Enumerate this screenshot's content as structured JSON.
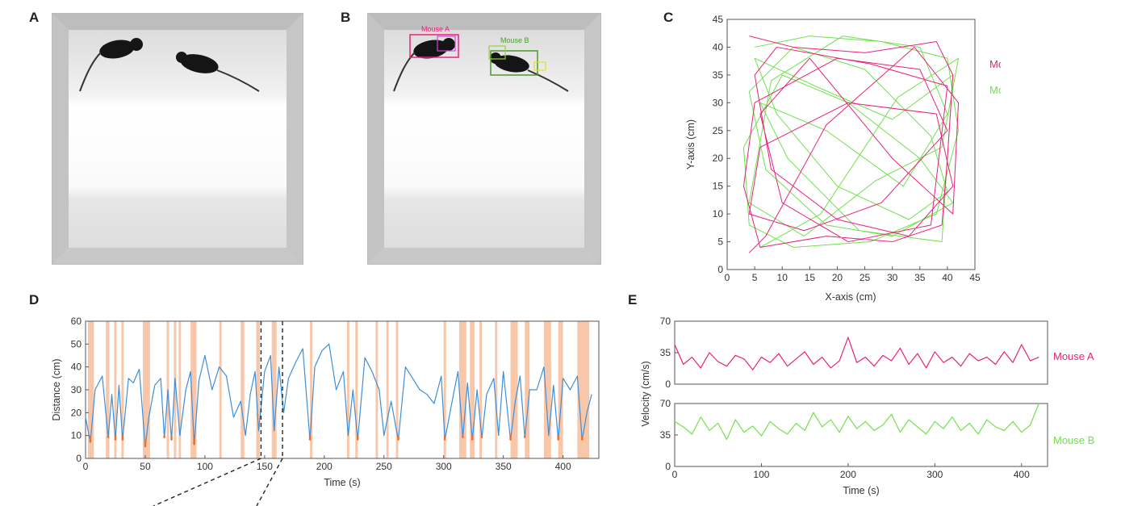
{
  "panels": {
    "a": "A",
    "b": "B",
    "c": "C",
    "d": "D",
    "e": "E"
  },
  "photo_b": {
    "label_a": "Mouse A",
    "label_b": "Mouse B"
  },
  "colors": {
    "mouse_a": "#e8227a",
    "mouse_b": "#6fe24a",
    "distance": "#3d8fd9",
    "close": "#f06a2a",
    "band": "#f6b48e"
  },
  "chart_data": [
    {
      "id": "C",
      "type": "line",
      "xlabel": "X-axis (cm)",
      "ylabel": "Y-axis (cm)",
      "xlim": [
        0,
        45
      ],
      "ylim": [
        0,
        45
      ],
      "xticks": [
        0,
        5,
        10,
        15,
        20,
        25,
        30,
        35,
        40,
        45
      ],
      "yticks": [
        0,
        5,
        10,
        15,
        20,
        25,
        30,
        35,
        40,
        45
      ],
      "grid": false,
      "legend": "right",
      "series": [
        {
          "name": "Mouse A",
          "color": "#e8227a",
          "x": [
            4,
            12,
            25,
            38,
            41,
            40,
            39,
            30,
            18,
            6,
            3,
            5,
            20,
            35,
            40,
            28,
            14,
            4,
            6,
            22,
            38,
            41,
            33,
            20,
            8,
            5,
            9,
            26,
            40,
            37,
            22,
            10,
            6,
            15,
            30,
            41,
            42,
            34,
            18,
            7,
            4
          ],
          "y": [
            42,
            40,
            39,
            41,
            35,
            20,
            8,
            5,
            6,
            4,
            15,
            30,
            38,
            36,
            25,
            12,
            7,
            10,
            22,
            30,
            28,
            15,
            6,
            9,
            18,
            35,
            40,
            37,
            33,
            8,
            5,
            12,
            28,
            38,
            20,
            10,
            30,
            40,
            26,
            6,
            3
          ]
        },
        {
          "name": "Mouse B",
          "color": "#6fe24a",
          "x": [
            5,
            15,
            28,
            40,
            42,
            38,
            26,
            12,
            4,
            3,
            10,
            22,
            35,
            41,
            30,
            18,
            7,
            4,
            12,
            25,
            37,
            40,
            33,
            20,
            9,
            5,
            16,
            30,
            41,
            39,
            24,
            11,
            6,
            18,
            32,
            40,
            35,
            21,
            8,
            4,
            14,
            27,
            39,
            42,
            31,
            17,
            6
          ],
          "y": [
            40,
            42,
            41,
            38,
            25,
            10,
            5,
            4,
            8,
            22,
            35,
            30,
            20,
            12,
            6,
            8,
            18,
            32,
            40,
            36,
            24,
            14,
            9,
            15,
            28,
            38,
            33,
            27,
            35,
            5,
            7,
            20,
            30,
            25,
            15,
            28,
            40,
            42,
            34,
            12,
            6,
            16,
            22,
            38,
            31,
            10,
            4
          ]
        }
      ]
    },
    {
      "id": "D",
      "type": "line",
      "xlabel": "Time (s)",
      "ylabel": "Distance (cm)",
      "xlim": [
        0,
        430
      ],
      "ylim": [
        0,
        60
      ],
      "xticks": [
        0,
        50,
        100,
        150,
        200,
        250,
        300,
        350,
        400
      ],
      "yticks": [
        0,
        10,
        20,
        30,
        40,
        50,
        60
      ],
      "close_threshold": 10,
      "zoom_window": [
        147,
        165
      ],
      "close_intervals": [
        [
          2,
          7
        ],
        [
          17,
          20
        ],
        [
          24,
          26
        ],
        [
          30,
          32
        ],
        [
          48,
          54
        ],
        [
          68,
          70
        ],
        [
          74,
          76
        ],
        [
          78,
          80
        ],
        [
          88,
          93
        ],
        [
          112,
          114
        ],
        [
          130,
          133
        ],
        [
          143,
          146
        ],
        [
          156,
          160
        ],
        [
          188,
          190
        ],
        [
          219,
          221
        ],
        [
          226,
          228
        ],
        [
          243,
          245
        ],
        [
          252,
          254
        ],
        [
          260,
          262
        ],
        [
          300,
          302
        ],
        [
          313,
          319
        ],
        [
          322,
          326
        ],
        [
          330,
          332
        ],
        [
          343,
          345
        ],
        [
          356,
          362
        ],
        [
          368,
          372
        ],
        [
          384,
          390
        ],
        [
          396,
          400
        ],
        [
          412,
          422
        ]
      ],
      "series": [
        {
          "name": "",
          "color": "#3d8fd9",
          "x": [
            0,
            4,
            8,
            14,
            19,
            22,
            25,
            28,
            31,
            36,
            40,
            45,
            50,
            53,
            58,
            63,
            66,
            69,
            72,
            75,
            79,
            84,
            88,
            91,
            95,
            100,
            106,
            112,
            118,
            124,
            130,
            134,
            138,
            142,
            145,
            150,
            155,
            158,
            162,
            166,
            170,
            176,
            182,
            188,
            192,
            198,
            204,
            210,
            216,
            220,
            224,
            228,
            234,
            240,
            246,
            250,
            256,
            262,
            268,
            274,
            280,
            286,
            292,
            298,
            301,
            306,
            312,
            316,
            320,
            324,
            328,
            332,
            336,
            342,
            346,
            350,
            356,
            360,
            364,
            368,
            372,
            378,
            384,
            388,
            392,
            396,
            400,
            406,
            412,
            416,
            420,
            424
          ],
          "y": [
            18,
            7,
            30,
            36,
            9,
            28,
            8,
            32,
            8,
            35,
            33,
            39,
            5,
            18,
            32,
            35,
            9,
            30,
            8,
            35,
            10,
            30,
            38,
            6,
            34,
            45,
            30,
            40,
            36,
            18,
            25,
            10,
            28,
            38,
            12,
            38,
            45,
            12,
            40,
            20,
            35,
            42,
            48,
            8,
            40,
            47,
            50,
            30,
            38,
            10,
            30,
            8,
            44,
            38,
            30,
            10,
            25,
            8,
            40,
            35,
            30,
            28,
            24,
            36,
            8,
            22,
            38,
            9,
            33,
            8,
            30,
            9,
            28,
            35,
            10,
            38,
            8,
            25,
            36,
            9,
            30,
            30,
            40,
            10,
            32,
            8,
            35,
            30,
            36,
            8,
            20,
            28
          ]
        }
      ]
    },
    {
      "id": "E-top",
      "type": "line",
      "xlabel": "",
      "ylabel": "Velocity (cm/s)",
      "xlim": [
        0,
        430
      ],
      "ylim": [
        0,
        70
      ],
      "yticks": [
        0,
        35,
        70
      ],
      "legend": "right",
      "series": [
        {
          "name": "Mouse A",
          "color": "#e8227a",
          "x": [
            0,
            10,
            20,
            30,
            40,
            50,
            60,
            70,
            80,
            90,
            100,
            110,
            120,
            130,
            140,
            150,
            160,
            170,
            180,
            190,
            200,
            210,
            220,
            230,
            240,
            250,
            260,
            270,
            280,
            290,
            300,
            310,
            320,
            330,
            340,
            350,
            360,
            370,
            380,
            390,
            400,
            410,
            420
          ],
          "y": [
            44,
            22,
            30,
            18,
            35,
            25,
            20,
            32,
            28,
            16,
            30,
            24,
            34,
            20,
            28,
            36,
            22,
            30,
            18,
            26,
            52,
            24,
            30,
            20,
            32,
            26,
            40,
            22,
            34,
            18,
            36,
            24,
            30,
            20,
            34,
            26,
            30,
            22,
            36,
            24,
            44,
            26,
            30
          ]
        }
      ]
    },
    {
      "id": "E-bottom",
      "type": "line",
      "xlabel": "Time (s)",
      "ylabel": "",
      "xlim": [
        0,
        430
      ],
      "ylim": [
        0,
        70
      ],
      "xticks": [
        0,
        100,
        200,
        300,
        400
      ],
      "yticks": [
        0,
        35,
        70
      ],
      "legend": "right",
      "series": [
        {
          "name": "Mouse B",
          "color": "#6fe24a",
          "x": [
            0,
            10,
            20,
            30,
            40,
            50,
            60,
            70,
            80,
            90,
            100,
            110,
            120,
            130,
            140,
            150,
            160,
            170,
            180,
            190,
            200,
            210,
            220,
            230,
            240,
            250,
            260,
            270,
            280,
            290,
            300,
            310,
            320,
            330,
            340,
            350,
            360,
            370,
            380,
            390,
            400,
            410,
            420
          ],
          "y": [
            50,
            44,
            36,
            55,
            40,
            48,
            30,
            52,
            38,
            45,
            34,
            50,
            42,
            36,
            48,
            40,
            60,
            44,
            52,
            38,
            56,
            42,
            50,
            40,
            46,
            58,
            38,
            52,
            44,
            36,
            50,
            42,
            55,
            40,
            48,
            36,
            52,
            44,
            40,
            50,
            38,
            46,
            70
          ]
        }
      ]
    }
  ]
}
